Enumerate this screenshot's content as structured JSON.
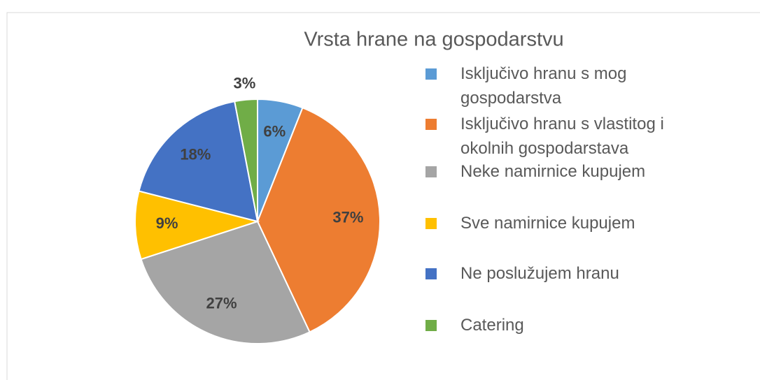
{
  "chart_data": {
    "type": "pie",
    "title": "Vrsta hrane na gospodarstvu",
    "categories": [
      "Isključivo hranu s mog gospodarstva",
      "Isključivo hranu s vlastitog i okolnih gospodarstava",
      "Neke namirnice kupujem",
      "Sve namirnice kupujem",
      "Ne poslužujem hranu",
      "Catering"
    ],
    "values": [
      6,
      37,
      27,
      9,
      18,
      3
    ],
    "value_labels": [
      "6%",
      "37%",
      "27%",
      "9%",
      "18%",
      "3%"
    ],
    "colors": [
      "#5b9bd5",
      "#ed7d31",
      "#a5a5a5",
      "#ffc000",
      "#4472c4",
      "#70ad47"
    ],
    "legend": "right"
  }
}
